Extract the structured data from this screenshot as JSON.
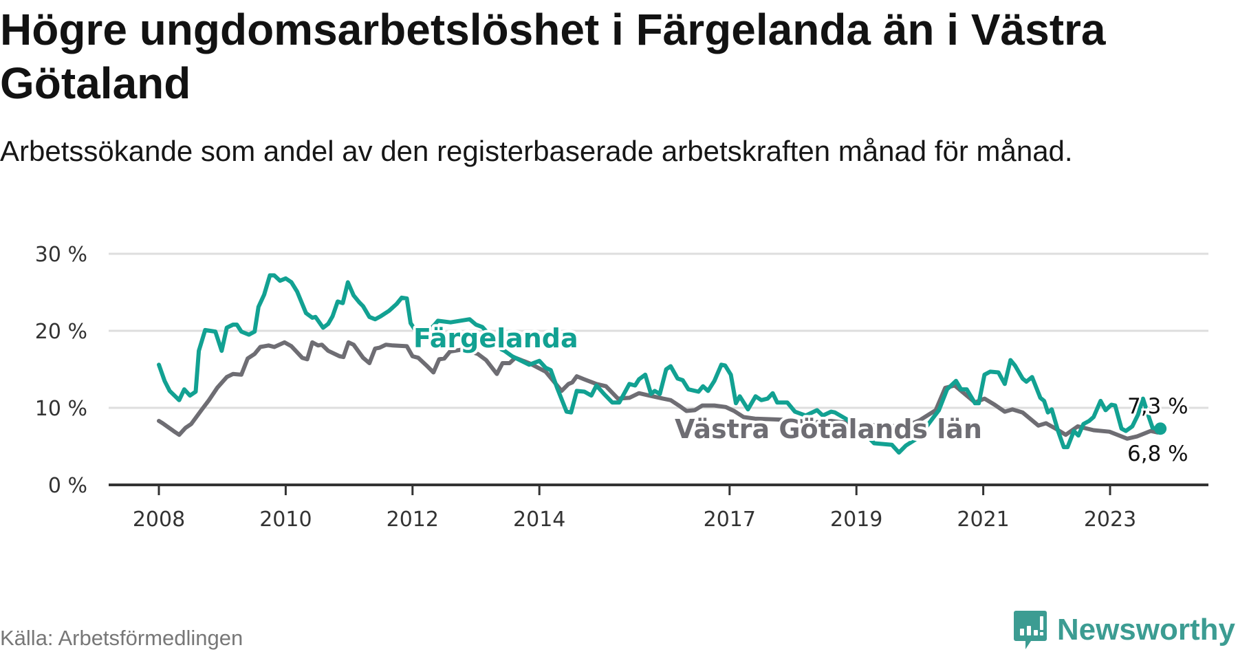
{
  "title": "Högre ungdomsarbetslöshet i Färgelanda än i Västra Götaland",
  "subtitle": "Arbetssökande som andel av den registerbaserade arbetskraften månad för månad.",
  "source": "Källa: Arbetsförmedlingen",
  "brand": "Newsworthy",
  "colors": {
    "fargelanda": "#12a192",
    "vastra": "#6e6d73",
    "grid": "#dedede",
    "axis": "#333333",
    "brand": "#3c9c92"
  },
  "chart_data": {
    "type": "line",
    "title": "Högre ungdomsarbetslöshet i Färgelanda än i Västra Götaland",
    "xlabel": "",
    "ylabel": "",
    "xlim": [
      2007.2,
      2024.5
    ],
    "ylim": [
      0,
      30
    ],
    "grid": true,
    "y_ticks": [
      {
        "value": 0,
        "label": "0 %"
      },
      {
        "value": 10,
        "label": "10 %"
      },
      {
        "value": 20,
        "label": "20 %"
      },
      {
        "value": 30,
        "label": "30 %"
      }
    ],
    "x_ticks": [
      {
        "value": 2008,
        "label": "2008"
      },
      {
        "value": 2010,
        "label": "2010"
      },
      {
        "value": 2012,
        "label": "2012"
      },
      {
        "value": 2014,
        "label": "2014"
      },
      {
        "value": 2017,
        "label": "2017"
      },
      {
        "value": 2019,
        "label": "2019"
      },
      {
        "value": 2021,
        "label": "2021"
      },
      {
        "value": 2023,
        "label": "2023"
      }
    ],
    "series": [
      {
        "name": "Västra Götalands län",
        "label": "Västra Götalands län",
        "end_label": "6,8 %",
        "x": [
          2008.0,
          2008.06,
          2008.23,
          2008.32,
          2008.42,
          2008.51,
          2008.67,
          2008.79,
          2008.92,
          2009.07,
          2009.17,
          2009.3,
          2009.4,
          2009.51,
          2009.6,
          2009.73,
          2009.82,
          2009.98,
          2010.09,
          2010.26,
          2010.34,
          2010.42,
          2010.51,
          2010.57,
          2010.67,
          2010.85,
          2010.91,
          2010.99,
          2011.07,
          2011.22,
          2011.32,
          2011.41,
          2011.48,
          2011.58,
          2011.69,
          2011.91,
          2012.0,
          2012.09,
          2012.22,
          2012.33,
          2012.42,
          2012.5,
          2012.59,
          2012.8,
          2013.03,
          2013.16,
          2013.33,
          2013.42,
          2013.53,
          2013.62,
          2013.84,
          2014.1,
          2014.22,
          2014.35,
          2014.46,
          2014.52,
          2014.59,
          2014.71,
          2014.9,
          2015.05,
          2015.24,
          2015.42,
          2015.57,
          2015.73,
          2015.95,
          2016.07,
          2016.2,
          2016.32,
          2016.45,
          2016.57,
          2016.76,
          2016.94,
          2017.07,
          2017.22,
          2017.4,
          2017.7,
          2018.0,
          2018.3,
          2018.6,
          2018.9,
          2019.2,
          2019.5,
          2019.8,
          2020.0,
          2020.25,
          2020.4,
          2020.55,
          2020.87,
          2021.02,
          2021.18,
          2021.34,
          2021.46,
          2021.62,
          2021.87,
          2021.99,
          2022.12,
          2022.3,
          2022.49,
          2022.74,
          2022.99,
          2023.27,
          2023.43,
          2023.64,
          2023.75
        ],
        "values": [
          8.3,
          8.0,
          7.0,
          6.5,
          7.4,
          7.9,
          9.7,
          11.0,
          12.6,
          14.0,
          14.4,
          14.3,
          16.4,
          17.0,
          17.9,
          18.1,
          17.9,
          18.5,
          18.0,
          16.5,
          16.3,
          18.5,
          18.1,
          18.2,
          17.4,
          16.7,
          16.6,
          18.5,
          18.2,
          16.5,
          15.8,
          17.7,
          17.8,
          18.2,
          18.1,
          18.0,
          16.7,
          16.5,
          15.5,
          14.6,
          16.3,
          16.4,
          17.3,
          17.6,
          17.0,
          16.2,
          14.4,
          15.8,
          15.8,
          16.5,
          15.8,
          14.7,
          13.5,
          12.2,
          13.1,
          13.3,
          14.1,
          13.7,
          13.1,
          12.8,
          11.2,
          11.3,
          11.9,
          11.6,
          11.2,
          11.0,
          10.3,
          9.6,
          9.7,
          10.3,
          10.3,
          10.1,
          9.6,
          8.8,
          8.6,
          8.5,
          8.4,
          8.1,
          8.3,
          8.0,
          7.8,
          7.6,
          7.7,
          8.4,
          9.7,
          12.6,
          12.9,
          10.7,
          11.2,
          10.4,
          9.5,
          9.8,
          9.4,
          7.7,
          8.0,
          7.4,
          6.5,
          7.6,
          7.1,
          6.9,
          6.0,
          6.3,
          7.0,
          6.8
        ]
      },
      {
        "name": "Färgelanda",
        "label": "Färgelanda",
        "end_label": "7,3 %",
        "x": [
          2008.0,
          2008.09,
          2008.17,
          2008.32,
          2008.4,
          2008.49,
          2008.58,
          2008.63,
          2008.73,
          2008.89,
          2008.99,
          2009.07,
          2009.17,
          2009.23,
          2009.3,
          2009.42,
          2009.51,
          2009.57,
          2009.66,
          2009.75,
          2009.82,
          2009.91,
          2010.0,
          2010.09,
          2010.18,
          2010.32,
          2010.42,
          2010.47,
          2010.59,
          2010.67,
          2010.74,
          2010.82,
          2010.9,
          2010.98,
          2011.07,
          2011.16,
          2011.22,
          2011.32,
          2011.41,
          2011.5,
          2011.63,
          2011.75,
          2011.83,
          2011.91,
          2011.97,
          2012.05,
          2012.2,
          2012.35,
          2012.4,
          2012.6,
          2012.9,
          2013.0,
          2013.1,
          2013.2,
          2013.3,
          2013.4,
          2013.45,
          2013.57,
          2013.84,
          2014.0,
          2014.1,
          2014.18,
          2014.28,
          2014.43,
          2014.5,
          2014.59,
          2014.71,
          2014.82,
          2014.9,
          2015.02,
          2015.15,
          2015.26,
          2015.42,
          2015.51,
          2015.57,
          2015.67,
          2015.76,
          2015.82,
          2015.9,
          2016.0,
          2016.07,
          2016.18,
          2016.26,
          2016.35,
          2016.51,
          2016.58,
          2016.66,
          2016.76,
          2016.87,
          2016.93,
          2017.02,
          2017.1,
          2017.16,
          2017.29,
          2017.41,
          2017.5,
          2017.6,
          2017.68,
          2017.75,
          2017.91,
          2018.03,
          2018.2,
          2018.38,
          2018.47,
          2018.6,
          2018.66,
          2018.85,
          2019.0,
          2019.15,
          2019.28,
          2019.56,
          2019.67,
          2019.78,
          2019.95,
          2020.1,
          2020.2,
          2020.3,
          2020.43,
          2020.57,
          2020.65,
          2020.74,
          2020.87,
          2020.93,
          2021.02,
          2021.11,
          2021.24,
          2021.34,
          2021.43,
          2021.5,
          2021.62,
          2021.68,
          2021.77,
          2021.9,
          2021.96,
          2022.02,
          2022.08,
          2022.18,
          2022.27,
          2022.33,
          2022.43,
          2022.5,
          2022.58,
          2022.67,
          2022.74,
          2022.85,
          2022.93,
          2023.02,
          2023.08,
          2023.18,
          2023.25,
          2023.35,
          2023.44,
          2023.52,
          2023.6,
          2023.67,
          2023.75
        ],
        "values": [
          15.6,
          13.5,
          12.2,
          11.0,
          12.4,
          11.6,
          12.1,
          17.4,
          20.1,
          19.9,
          17.4,
          20.4,
          20.8,
          20.8,
          19.9,
          19.5,
          19.9,
          23.1,
          24.7,
          27.2,
          27.2,
          26.5,
          26.8,
          26.3,
          25.1,
          22.3,
          21.7,
          21.8,
          20.4,
          20.9,
          21.9,
          23.8,
          23.6,
          26.3,
          24.6,
          23.7,
          23.2,
          21.8,
          21.5,
          21.9,
          22.6,
          23.5,
          24.3,
          24.2,
          21.0,
          20.0,
          19.5,
          20.8,
          21.3,
          21.1,
          21.5,
          20.8,
          20.5,
          19.6,
          18.5,
          17.6,
          17.4,
          16.7,
          15.6,
          16.1,
          15.2,
          14.9,
          12.6,
          9.5,
          9.4,
          12.2,
          12.1,
          11.6,
          12.9,
          11.8,
          10.7,
          10.7,
          13.1,
          12.9,
          13.7,
          14.3,
          11.8,
          12.2,
          11.8,
          15.0,
          15.4,
          13.8,
          13.6,
          12.4,
          12.1,
          12.8,
          12.2,
          13.5,
          15.6,
          15.5,
          14.3,
          10.6,
          11.5,
          9.8,
          11.5,
          11.0,
          11.2,
          11.9,
          10.7,
          10.7,
          9.5,
          9.0,
          9.7,
          9.0,
          9.5,
          9.4,
          8.5,
          7.6,
          6.5,
          5.4,
          5.2,
          4.2,
          5.1,
          6.0,
          7.5,
          8.6,
          9.7,
          12.4,
          13.5,
          12.4,
          12.4,
          10.6,
          10.6,
          14.3,
          14.7,
          14.6,
          13.1,
          16.2,
          15.5,
          13.8,
          13.4,
          14.0,
          11.3,
          10.9,
          9.4,
          9.8,
          7.0,
          4.9,
          4.9,
          7.0,
          6.4,
          7.9,
          8.3,
          8.8,
          10.9,
          9.7,
          10.4,
          10.3,
          7.3,
          7.0,
          7.6,
          9.1,
          11.2,
          9.1,
          7.4,
          7.3
        ]
      }
    ]
  }
}
